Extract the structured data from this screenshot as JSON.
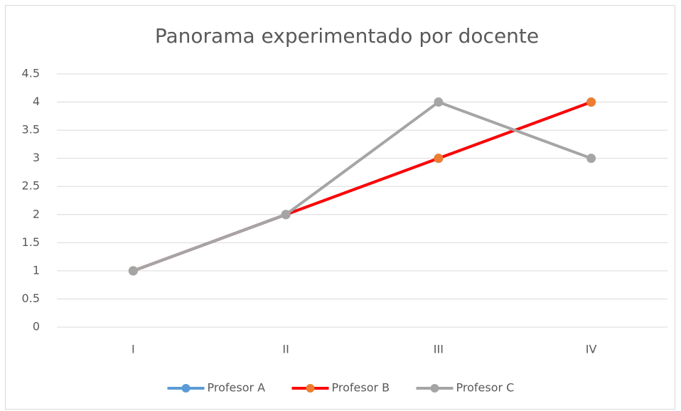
{
  "chart_data": {
    "type": "line",
    "title": "Panorama experimentado por docente",
    "categories": [
      "I",
      "II",
      "III",
      "IV"
    ],
    "series": [
      {
        "name": "Profesor A",
        "color": "#5b9bd5",
        "marker_color": "#5b9bd5",
        "values": [
          1,
          2,
          3,
          4
        ]
      },
      {
        "name": "Profesor B",
        "color": "#ff0000",
        "marker_color": "#ed7d31",
        "values": [
          1,
          2,
          3,
          4
        ]
      },
      {
        "name": "Profesor C",
        "color": "#a5a5a5",
        "marker_color": "#a5a5a5",
        "values": [
          1,
          2,
          4,
          3
        ]
      }
    ],
    "ylim": [
      0,
      4.5
    ],
    "yticks": [
      0,
      0.5,
      1,
      1.5,
      2,
      2.5,
      3,
      3.5,
      4,
      4.5
    ],
    "grid": true,
    "legend": "bottom"
  }
}
